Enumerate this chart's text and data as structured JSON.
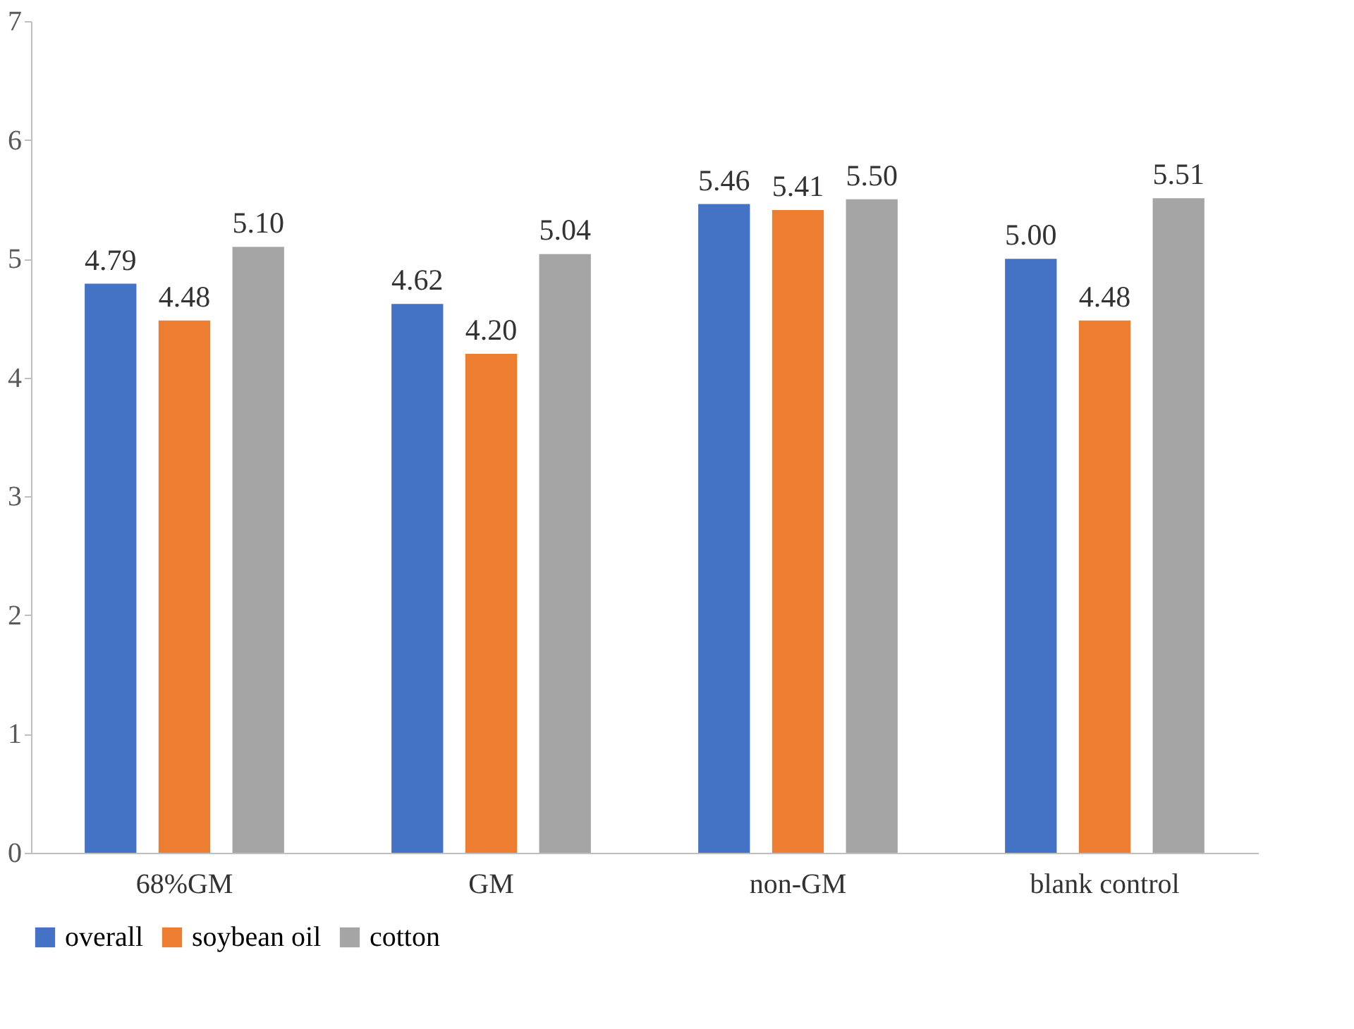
{
  "chart_data": {
    "type": "bar",
    "categories": [
      "68%GM",
      "GM",
      "non-GM",
      "blank control"
    ],
    "series": [
      {
        "name": "overall",
        "color": "#4472c4",
        "values": [
          4.79,
          4.62,
          5.46,
          5.0
        ],
        "value_labels": [
          "4.79",
          "4.62",
          "5.46",
          "5.00"
        ]
      },
      {
        "name": "soybean oil",
        "color": "#ed7d31",
        "values": [
          4.48,
          4.2,
          5.41,
          4.48
        ],
        "value_labels": [
          "4.48",
          "4.20",
          "5.41",
          "4.48"
        ]
      },
      {
        "name": "cotton",
        "color": "#a5a5a5",
        "values": [
          5.1,
          5.04,
          5.5,
          5.51
        ],
        "value_labels": [
          "5.10",
          "5.04",
          "5.50",
          "5.51"
        ]
      }
    ],
    "ylim": [
      0,
      7
    ],
    "yticks": [
      0,
      1,
      2,
      3,
      4,
      5,
      6,
      7
    ],
    "grid": false,
    "legend": "bottom"
  }
}
